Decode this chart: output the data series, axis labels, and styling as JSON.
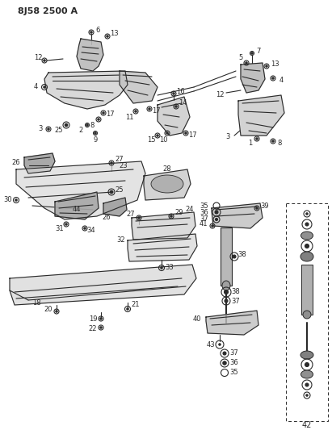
{
  "title": "8J58 2500 A",
  "bg_color": "#ffffff",
  "line_color": "#2a2a2a",
  "title_fontsize": 8,
  "label_fontsize": 6,
  "fig_width": 4.11,
  "fig_height": 5.33,
  "dpi": 100
}
